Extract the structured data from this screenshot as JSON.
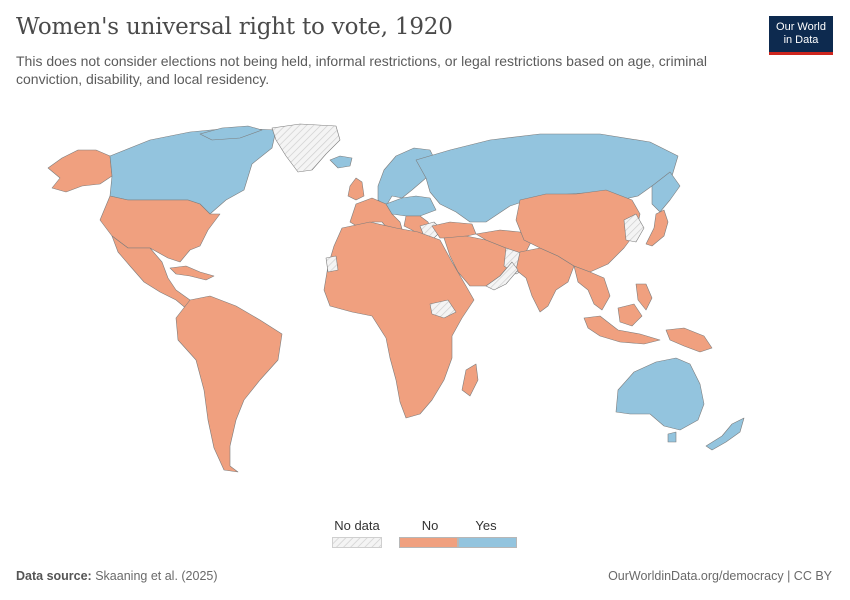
{
  "header": {
    "title": "Women's universal right to vote, 1920",
    "subtitle": "This does not consider elections not being held, informal restrictions, or legal restrictions based on age, criminal conviction, disability, and local residency."
  },
  "logo": {
    "line1": "Our World",
    "line2": "in Data"
  },
  "legend": {
    "no_data_label": "No data",
    "no_label": "No",
    "yes_label": "Yes",
    "colors": {
      "no": "#f0a07f",
      "yes": "#93c4de",
      "no_data": "#e6e6e6",
      "border": "#7d7d7d"
    }
  },
  "footer": {
    "source_label": "Data source:",
    "source_text": "Skaaning et al. (2025)",
    "url_text": "OurWorldinData.org/democracy | CC BY"
  }
}
